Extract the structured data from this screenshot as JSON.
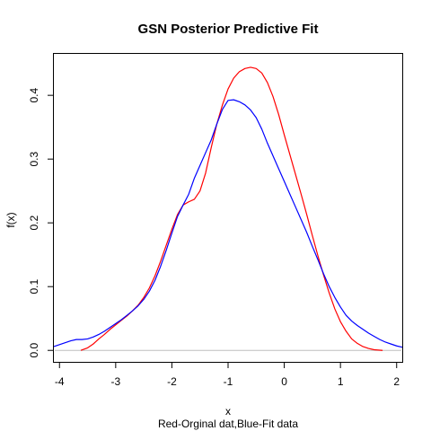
{
  "chart_data": {
    "type": "line",
    "title": "GSN Posterior Predictive Fit",
    "xlabel": "x",
    "sub": "Red-Orginal dat,Blue-Fit data",
    "ylabel": "f(x)",
    "xlim": [
      -4.1,
      2.1
    ],
    "ylim": [
      -0.018,
      0.465
    ],
    "xticks": [
      -4,
      -3,
      -2,
      -1,
      0,
      1,
      2
    ],
    "xtick_labels": [
      "-4",
      "-3",
      "-2",
      "-1",
      "0",
      "1",
      "2"
    ],
    "yticks": [
      0.0,
      0.1,
      0.2,
      0.3,
      0.4
    ],
    "ytick_labels": [
      "0.0",
      "0.1",
      "0.2",
      "0.3",
      "0.4"
    ],
    "hline": {
      "y": 0,
      "color": "#bebebe"
    },
    "grid": false,
    "series": [
      {
        "color": "#ff0000",
        "x": [
          -3.62,
          -3.5,
          -3.4,
          -3.3,
          -3.2,
          -3.1,
          -3.0,
          -2.9,
          -2.8,
          -2.7,
          -2.6,
          -2.5,
          -2.4,
          -2.3,
          -2.2,
          -2.1,
          -2.0,
          -1.9,
          -1.8,
          -1.7,
          -1.6,
          -1.5,
          -1.4,
          -1.3,
          -1.2,
          -1.1,
          -1.0,
          -0.9,
          -0.8,
          -0.7,
          -0.6,
          -0.5,
          -0.4,
          -0.3,
          -0.2,
          -0.1,
          0.0,
          0.1,
          0.2,
          0.3,
          0.4,
          0.5,
          0.6,
          0.7,
          0.8,
          0.9,
          1.0,
          1.1,
          1.2,
          1.3,
          1.4,
          1.5,
          1.6,
          1.7,
          1.75
        ],
        "y": [
          0.0,
          0.004,
          0.01,
          0.018,
          0.025,
          0.033,
          0.04,
          0.047,
          0.054,
          0.062,
          0.071,
          0.083,
          0.098,
          0.117,
          0.14,
          0.165,
          0.19,
          0.213,
          0.228,
          0.233,
          0.237,
          0.25,
          0.278,
          0.318,
          0.355,
          0.385,
          0.41,
          0.427,
          0.437,
          0.442,
          0.444,
          0.442,
          0.435,
          0.42,
          0.398,
          0.37,
          0.338,
          0.307,
          0.276,
          0.245,
          0.213,
          0.18,
          0.148,
          0.118,
          0.09,
          0.065,
          0.045,
          0.03,
          0.018,
          0.011,
          0.006,
          0.003,
          0.001,
          0.0003,
          0.0
        ]
      },
      {
        "color": "#0000ff",
        "x": [
          -4.1,
          -4.0,
          -3.9,
          -3.8,
          -3.7,
          -3.6,
          -3.5,
          -3.4,
          -3.3,
          -3.2,
          -3.1,
          -3.0,
          -2.9,
          -2.8,
          -2.7,
          -2.6,
          -2.5,
          -2.4,
          -2.3,
          -2.2,
          -2.1,
          -2.0,
          -1.9,
          -1.8,
          -1.7,
          -1.6,
          -1.5,
          -1.4,
          -1.3,
          -1.2,
          -1.1,
          -1.0,
          -0.9,
          -0.8,
          -0.7,
          -0.6,
          -0.5,
          -0.4,
          -0.3,
          -0.2,
          -0.1,
          0.0,
          0.1,
          0.2,
          0.3,
          0.4,
          0.5,
          0.6,
          0.7,
          0.8,
          0.9,
          1.0,
          1.1,
          1.2,
          1.3,
          1.4,
          1.5,
          1.6,
          1.7,
          1.8,
          1.9,
          2.0,
          2.1
        ],
        "y": [
          0.006,
          0.009,
          0.012,
          0.015,
          0.017,
          0.017,
          0.018,
          0.021,
          0.025,
          0.03,
          0.036,
          0.042,
          0.048,
          0.055,
          0.062,
          0.07,
          0.08,
          0.093,
          0.11,
          0.132,
          0.157,
          0.184,
          0.21,
          0.228,
          0.245,
          0.27,
          0.29,
          0.31,
          0.33,
          0.355,
          0.378,
          0.392,
          0.393,
          0.39,
          0.385,
          0.377,
          0.365,
          0.347,
          0.325,
          0.305,
          0.285,
          0.265,
          0.245,
          0.225,
          0.205,
          0.185,
          0.163,
          0.142,
          0.12,
          0.1,
          0.083,
          0.068,
          0.055,
          0.046,
          0.039,
          0.033,
          0.027,
          0.022,
          0.017,
          0.013,
          0.01,
          0.007,
          0.005
        ]
      }
    ]
  }
}
